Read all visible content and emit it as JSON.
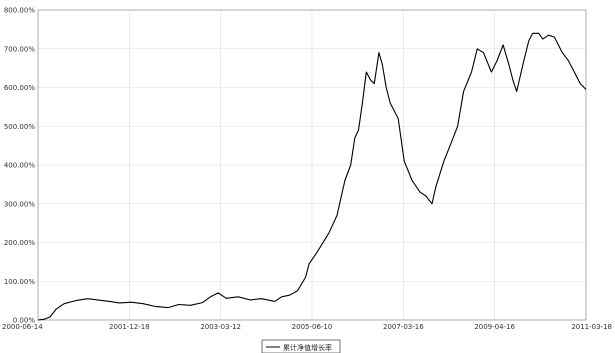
{
  "chart_data": {
    "type": "line",
    "title": "",
    "xlabel": "",
    "ylabel": "",
    "y_ticks": [
      "0.00%",
      "100.00%",
      "200.00%",
      "300.00%",
      "400.00%",
      "500.00%",
      "600.00%",
      "700.00%",
      "800.00%"
    ],
    "x_ticks": [
      "2000-06-14",
      "2001-12-18",
      "2003-03-12",
      "2005-06-10",
      "2007-03-16",
      "2009-04-16",
      "2011-03-18"
    ],
    "ylim": [
      0,
      800
    ],
    "grid": true,
    "legend": {
      "position": "bottom-center"
    },
    "series": [
      {
        "name": "累计净值增长率",
        "color": "#000000",
        "points": [
          [
            "2000-06-14",
            0
          ],
          [
            "2000-08-01",
            2
          ],
          [
            "2000-09-15",
            8
          ],
          [
            "2000-11-01",
            28
          ],
          [
            "2001-01-01",
            42
          ],
          [
            "2001-04-01",
            50
          ],
          [
            "2001-07-01",
            55
          ],
          [
            "2001-09-15",
            52
          ],
          [
            "2001-12-18",
            48
          ],
          [
            "2002-03-01",
            44
          ],
          [
            "2002-06-01",
            46
          ],
          [
            "2002-09-01",
            42
          ],
          [
            "2002-12-01",
            35
          ],
          [
            "2003-03-12",
            32
          ],
          [
            "2003-06-01",
            40
          ],
          [
            "2003-09-01",
            38
          ],
          [
            "2003-12-01",
            45
          ],
          [
            "2004-02-01",
            60
          ],
          [
            "2004-04-01",
            70
          ],
          [
            "2004-06-01",
            56
          ],
          [
            "2004-09-01",
            60
          ],
          [
            "2004-12-01",
            52
          ],
          [
            "2005-03-01",
            55
          ],
          [
            "2005-06-10",
            48
          ],
          [
            "2005-08-01",
            60
          ],
          [
            "2005-10-01",
            64
          ],
          [
            "2005-12-01",
            75
          ],
          [
            "2006-02-01",
            110
          ],
          [
            "2006-03-01",
            145
          ],
          [
            "2006-05-01",
            175
          ],
          [
            "2006-08-01",
            225
          ],
          [
            "2006-10-01",
            270
          ],
          [
            "2006-12-01",
            360
          ],
          [
            "2007-01-15",
            400
          ],
          [
            "2007-02-15",
            470
          ],
          [
            "2007-03-16",
            490
          ],
          [
            "2007-04-15",
            560
          ],
          [
            "2007-05-15",
            640
          ],
          [
            "2007-06-15",
            620
          ],
          [
            "2007-07-15",
            610
          ],
          [
            "2007-08-20",
            690
          ],
          [
            "2007-09-15",
            660
          ],
          [
            "2007-10-15",
            600
          ],
          [
            "2007-11-15",
            560
          ],
          [
            "2008-01-15",
            520
          ],
          [
            "2008-03-01",
            410
          ],
          [
            "2008-05-01",
            360
          ],
          [
            "2008-07-01",
            330
          ],
          [
            "2008-08-15",
            320
          ],
          [
            "2008-10-01",
            300
          ],
          [
            "2008-11-01",
            345
          ],
          [
            "2009-01-01",
            410
          ],
          [
            "2009-03-01",
            460
          ],
          [
            "2009-04-16",
            500
          ],
          [
            "2009-06-01",
            590
          ],
          [
            "2009-08-01",
            640
          ],
          [
            "2009-09-15",
            700
          ],
          [
            "2009-11-01",
            690
          ],
          [
            "2010-01-01",
            640
          ],
          [
            "2010-02-15",
            670
          ],
          [
            "2010-04-01",
            710
          ],
          [
            "2010-05-15",
            660
          ],
          [
            "2010-06-15",
            620
          ],
          [
            "2010-07-15",
            590
          ],
          [
            "2010-09-01",
            660
          ],
          [
            "2010-10-15",
            720
          ],
          [
            "2010-11-15",
            740
          ],
          [
            "2011-01-01",
            740
          ],
          [
            "2011-02-01",
            725
          ],
          [
            "2011-03-18",
            735
          ],
          [
            "2011-05-01",
            730
          ],
          [
            "2011-07-01",
            690
          ],
          [
            "2011-08-15",
            670
          ],
          [
            "2011-10-01",
            640
          ],
          [
            "2011-11-15",
            610
          ],
          [
            "2011-12-30",
            595
          ]
        ]
      }
    ]
  }
}
